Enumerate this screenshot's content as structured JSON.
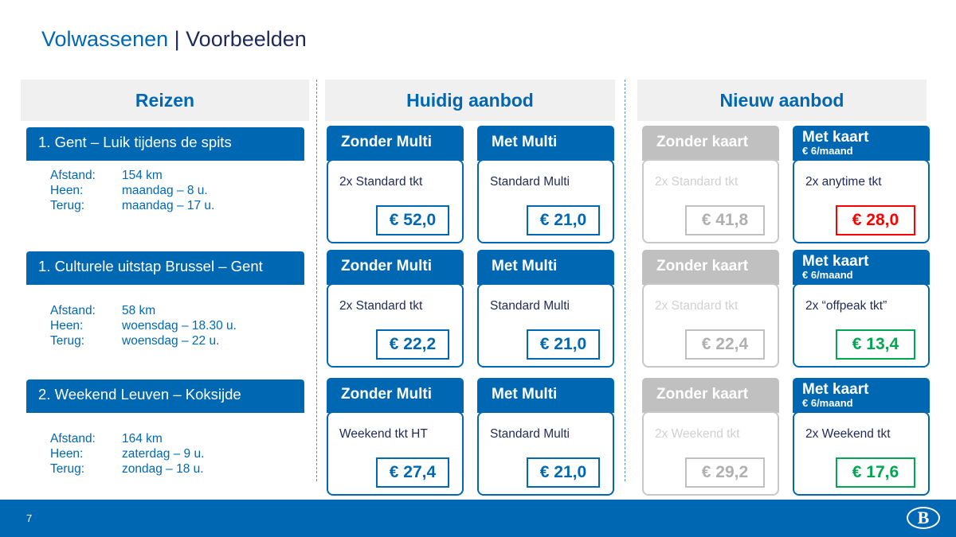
{
  "title": {
    "part1": "Volwassenen",
    "separator": " | ",
    "part2": "Voorbeelden"
  },
  "columns": [
    "Reizen",
    "Huidig aanbod",
    "Nieuw aanbod"
  ],
  "colors": {
    "brand_blue": "#0068b3",
    "grey": "#c0c0c0",
    "red": "#ff0000",
    "green": "#00a650"
  },
  "labels": {
    "afstand": "Afstand:",
    "heen": "Heen:",
    "terug": "Terug:"
  },
  "trips": [
    {
      "title": "1. Gent – Luik tijdens de spits",
      "afstand": "154 km",
      "heen": "maandag – 8 u.",
      "terug": "maandag – 17 u.",
      "offers": [
        {
          "tab": "Zonder Multi",
          "desc": "2x Standard tkt",
          "price": "€ 52,0",
          "style": "blue"
        },
        {
          "tab": "Met Multi",
          "desc": "Standard Multi",
          "price": "€ 21,0",
          "style": "blue"
        },
        {
          "tab": "Zonder kaart",
          "desc": "2x Standard tkt",
          "price": "€ 41,8",
          "style": "grey"
        },
        {
          "tab": "Met kaart",
          "sub": "€ 6/maand",
          "desc": "2x anytime tkt",
          "price": "€ 28,0",
          "style": "blue",
          "price_color": "red"
        }
      ]
    },
    {
      "title": "1. Culturele uitstap Brussel – Gent",
      "afstand": "58 km",
      "heen": "woensdag – 18.30 u.",
      "terug": "woensdag – 22 u.",
      "offers": [
        {
          "tab": "Zonder Multi",
          "desc": "2x Standard tkt",
          "price": "€ 22,2",
          "style": "blue"
        },
        {
          "tab": "Met Multi",
          "desc": "Standard Multi",
          "price": "€ 21,0",
          "style": "blue"
        },
        {
          "tab": "Zonder kaart",
          "desc": "2x Standard tkt",
          "price": "€ 22,4",
          "style": "grey"
        },
        {
          "tab": "Met kaart",
          "sub": "€ 6/maand",
          "desc": "2x “offpeak tkt”",
          "price": "€ 13,4",
          "style": "blue",
          "price_color": "green"
        }
      ]
    },
    {
      "title": "2. Weekend Leuven – Koksijde",
      "afstand": "164 km",
      "heen": "zaterdag – 9 u.",
      "terug": "zondag – 18 u.",
      "offers": [
        {
          "tab": "Zonder Multi",
          "desc": "Weekend tkt HT",
          "price": "€ 27,4",
          "style": "blue"
        },
        {
          "tab": "Met Multi",
          "desc": "Standard Multi",
          "price": "€ 21,0",
          "style": "blue"
        },
        {
          "tab": "Zonder kaart",
          "desc": "2x Weekend tkt",
          "price": "€ 29,2",
          "style": "grey"
        },
        {
          "tab": "Met kaart",
          "sub": "€ 6/maand",
          "desc": "2x Weekend tkt",
          "price": "€ 17,6",
          "style": "blue",
          "price_color": "green"
        }
      ]
    }
  ],
  "footer": {
    "page_number": "7",
    "logo_letter": "B"
  }
}
